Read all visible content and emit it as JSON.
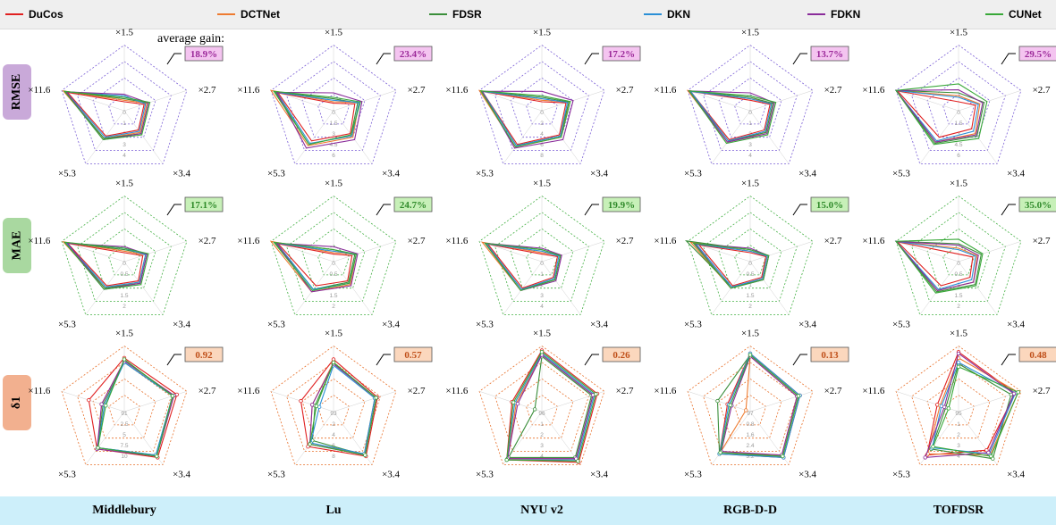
{
  "legend": [
    {
      "name": "DuCos",
      "color": "#e02020"
    },
    {
      "name": "DCTNet",
      "color": "#ee7b30"
    },
    {
      "name": "FDSR",
      "color": "#3a8e3a"
    },
    {
      "name": "DKN",
      "color": "#2a8fd6"
    },
    {
      "name": "FDKN",
      "color": "#8a2c9a"
    },
    {
      "name": "CUNet",
      "color": "#38a838"
    }
  ],
  "average_gain_label": "average gain:",
  "row_labels": [
    "RMSE",
    "MAE",
    "δ1"
  ],
  "row_colors": {
    "RMSE": "#c9a9d9",
    "MAE": "#a9d8a0",
    "δ1": "#f2b08f"
  },
  "datasets": [
    "Middlebury",
    "Lu",
    "NYU v2",
    "RGB-D-D",
    "TOFDSR"
  ],
  "colors": {
    "bottom_bar": "#cdeffa",
    "legend_bar": "#efefef"
  },
  "chart_data": {
    "type": "radar",
    "axes": [
      "×1.5",
      "×2.7",
      "×3.4",
      "×5.3",
      "×11.6"
    ],
    "rows": [
      {
        "metric": "RMSE",
        "ring_color": "#7b5fd6",
        "gain_bg": "#f4c4f0",
        "gain_text": "#9c2a9a",
        "panels": [
          {
            "dataset": "Middlebury",
            "gain": "18.9%",
            "ring_labels": [
              "0",
              "1",
              "2",
              "3",
              "4"
            ],
            "series": {
              "DuCos": [
                0.6,
                1.4,
                1.6,
                2.1,
                4.0
              ],
              "DCTNet": [
                0.7,
                1.6,
                1.8,
                2.3,
                4.3
              ],
              "FDSR": [
                0.8,
                1.7,
                1.9,
                2.3,
                4.2
              ],
              "DKN": [
                1.0,
                1.5,
                1.7,
                2.2,
                4.1
              ],
              "FDKN": [
                1.1,
                1.7,
                1.9,
                2.4,
                4.1
              ],
              "CUNet": [
                0.9,
                1.8,
                2.0,
                2.4,
                4.2
              ]
            }
          },
          {
            "dataset": "Lu",
            "gain": "23.4%",
            "ring_labels": [
              "0",
              "1.5",
              "3",
              "4.5",
              "6"
            ],
            "series": {
              "DuCos": [
                0.5,
                1.5,
                1.9,
                2.5,
                3.9
              ],
              "DCTNet": [
                0.6,
                1.8,
                2.2,
                2.9,
                4.4
              ],
              "FDSR": [
                0.8,
                1.7,
                2.0,
                2.8,
                4.1
              ],
              "DKN": [
                0.7,
                1.8,
                2.1,
                2.7,
                4.0
              ],
              "FDKN": [
                1.2,
                2.0,
                2.4,
                3.1,
                4.0
              ],
              "CUNet": [
                0.9,
                1.9,
                2.0,
                2.8,
                4.2
              ]
            }
          },
          {
            "dataset": "NYU v2",
            "gain": "17.2%",
            "ring_labels": [
              "0",
              "2",
              "4",
              "6",
              "8"
            ],
            "series": {
              "DuCos": [
                0.6,
                1.7,
                2.0,
                2.8,
                4.2
              ],
              "DCTNet": [
                0.7,
                1.9,
                2.2,
                3.0,
                4.4
              ],
              "FDSR": [
                0.9,
                1.9,
                2.1,
                2.9,
                4.2
              ],
              "DKN": [
                0.8,
                1.8,
                2.1,
                2.9,
                4.2
              ],
              "FDKN": [
                1.3,
                2.2,
                2.4,
                3.1,
                4.2
              ],
              "CUNet": [
                1.0,
                2.0,
                2.2,
                3.0,
                4.3
              ]
            }
          },
          {
            "dataset": "RGB-D-D",
            "gain": "13.7%",
            "ring_labels": [
              "0",
              "1",
              "2",
              "3",
              "4"
            ],
            "series": {
              "DuCos": [
                0.7,
                1.4,
                1.6,
                2.4,
                4.2
              ],
              "DCTNet": [
                0.8,
                1.6,
                1.8,
                2.6,
                4.4
              ],
              "FDSR": [
                0.9,
                1.6,
                1.8,
                2.5,
                4.3
              ],
              "DKN": [
                0.8,
                1.5,
                1.7,
                2.5,
                4.2
              ],
              "FDKN": [
                1.2,
                1.7,
                1.9,
                2.6,
                4.3
              ],
              "CUNet": [
                1.0,
                1.8,
                2.0,
                2.7,
                4.3
              ]
            }
          },
          {
            "dataset": "TOFDSR",
            "gain": "29.5%",
            "ring_labels": [
              "0",
              "1.5",
              "3",
              "4.5",
              "6"
            ],
            "series": {
              "DuCos": [
                0.6,
                1.2,
                1.5,
                2.2,
                4.3
              ],
              "DCTNet": [
                1.0,
                1.5,
                1.9,
                2.6,
                4.4
              ],
              "FDSR": [
                1.2,
                1.8,
                2.1,
                2.7,
                4.4
              ],
              "DKN": [
                0.9,
                1.4,
                1.7,
                2.5,
                4.4
              ],
              "FDKN": [
                1.4,
                1.7,
                2.0,
                2.6,
                4.4
              ],
              "CUNet": [
                1.8,
                2.0,
                2.3,
                2.8,
                4.4
              ]
            }
          }
        ]
      },
      {
        "metric": "MAE",
        "ring_color": "#43b043",
        "gain_bg": "#c7f0b8",
        "gain_text": "#2f8a2a",
        "panels": [
          {
            "dataset": "Middlebury",
            "gain": "17.1%",
            "ring_labels": [
              "0",
              "0.5",
              "1",
              "1.5",
              "2"
            ],
            "series": {
              "DuCos": [
                0.6,
                1.3,
                1.6,
                2.0,
                4.0
              ],
              "DCTNet": [
                0.7,
                1.5,
                1.7,
                2.2,
                4.3
              ],
              "FDSR": [
                0.8,
                1.6,
                1.8,
                2.2,
                4.1
              ],
              "DKN": [
                0.9,
                1.5,
                1.7,
                2.1,
                4.1
              ],
              "FDKN": [
                1.0,
                1.6,
                1.8,
                2.3,
                4.0
              ],
              "CUNet": [
                0.9,
                1.7,
                1.9,
                2.3,
                4.2
              ]
            }
          },
          {
            "dataset": "Lu",
            "gain": "24.7%",
            "ring_labels": [
              "0",
              "0.5",
              "1",
              "1.5",
              "2"
            ],
            "series": {
              "DuCos": [
                0.5,
                1.3,
                1.6,
                2.0,
                3.9
              ],
              "DCTNet": [
                0.6,
                1.6,
                1.9,
                2.5,
                4.4
              ],
              "FDSR": [
                0.8,
                1.5,
                1.7,
                2.3,
                4.1
              ],
              "DKN": [
                0.7,
                1.6,
                1.8,
                2.3,
                4.0
              ],
              "FDKN": [
                1.0,
                1.7,
                2.0,
                2.5,
                4.0
              ],
              "CUNet": [
                0.8,
                1.6,
                1.8,
                2.4,
                4.2
              ]
            }
          },
          {
            "dataset": "NYU v2",
            "gain": "19.9%",
            "ring_labels": [
              "0",
              "1",
              "2",
              "3",
              "4"
            ],
            "series": {
              "DuCos": [
                0.5,
                1.1,
                1.3,
                2.2,
                3.8
              ],
              "DCTNet": [
                0.6,
                1.3,
                1.5,
                2.4,
                4.2
              ],
              "FDSR": [
                0.8,
                1.3,
                1.5,
                2.3,
                4.0
              ],
              "DKN": [
                0.7,
                1.2,
                1.4,
                2.3,
                3.9
              ],
              "FDKN": [
                0.9,
                1.4,
                1.6,
                2.4,
                4.0
              ],
              "CUNet": [
                0.8,
                1.3,
                1.5,
                2.4,
                4.0
              ]
            }
          },
          {
            "dataset": "RGB-D-D",
            "gain": "15.0%",
            "ring_labels": [
              "0",
              "0.5",
              "1",
              "1.5",
              "2"
            ],
            "series": {
              "DuCos": [
                0.6,
                1.1,
                1.3,
                2.0,
                3.6
              ],
              "DCTNet": [
                0.7,
                1.2,
                1.4,
                2.2,
                4.2
              ],
              "FDSR": [
                0.8,
                1.3,
                1.5,
                2.1,
                4.5
              ],
              "DKN": [
                0.7,
                1.2,
                1.4,
                2.1,
                3.8
              ],
              "FDKN": [
                0.9,
                1.3,
                1.5,
                2.2,
                3.9
              ],
              "CUNet": [
                0.8,
                1.3,
                1.5,
                2.2,
                4.0
              ]
            }
          },
          {
            "dataset": "TOFDSR",
            "gain": "35.0%",
            "ring_labels": [
              "0",
              "0.5",
              "1",
              "1.5",
              "2"
            ],
            "series": {
              "DuCos": [
                0.5,
                1.0,
                1.3,
                2.0,
                4.3
              ],
              "DCTNet": [
                0.9,
                1.3,
                1.7,
                2.4,
                4.4
              ],
              "FDSR": [
                1.2,
                1.6,
                1.9,
                2.5,
                4.4
              ],
              "DKN": [
                0.8,
                1.2,
                1.5,
                2.3,
                4.4
              ],
              "FDKN": [
                1.1,
                1.4,
                1.7,
                2.4,
                4.4
              ],
              "CUNet": [
                1.5,
                1.7,
                2.0,
                2.6,
                4.4
              ]
            }
          }
        ]
      },
      {
        "metric": "δ1",
        "ring_color": "#e8702a",
        "gain_bg": "#fbd7bd",
        "gain_text": "#c0501a",
        "panels": [
          {
            "dataset": "Middlebury",
            "gain": "0.92",
            "ring_labels": [
              "91",
              "2.5",
              "5",
              "7.5",
              "10"
            ],
            "series": {
              "DuCos": [
                3.6,
                3.7,
                3.8,
                3.1,
                2.5
              ],
              "DCTNet": [
                3.4,
                3.5,
                3.7,
                3.0,
                1.6
              ],
              "FDSR": [
                3.3,
                3.4,
                3.6,
                3.0,
                1.5
              ],
              "DKN": [
                3.3,
                3.4,
                3.6,
                3.0,
                1.4
              ],
              "FDKN": [
                3.4,
                3.5,
                3.7,
                3.1,
                1.6
              ],
              "CUNet": [
                3.5,
                3.4,
                3.7,
                3.0,
                1.3
              ]
            }
          },
          {
            "dataset": "Lu",
            "gain": "0.57",
            "ring_labels": [
              "93",
              "2",
              "4",
              "6",
              "8"
            ],
            "series": {
              "DuCos": [
                3.5,
                3.1,
                3.7,
                2.9,
                2.3
              ],
              "DCTNet": [
                3.3,
                2.9,
                3.5,
                2.7,
                1.5
              ],
              "FDSR": [
                3.2,
                3.0,
                3.6,
                2.4,
                1.3
              ],
              "DKN": [
                3.1,
                2.9,
                3.5,
                2.6,
                1.0
              ],
              "FDKN": [
                3.2,
                3.0,
                3.6,
                2.7,
                1.5
              ],
              "CUNet": [
                3.3,
                3.0,
                3.6,
                2.7,
                1.2
              ]
            }
          },
          {
            "dataset": "NYU v2",
            "gain": "0.26",
            "ring_labels": [
              "96",
              "1",
              "2",
              "3",
              "4"
            ],
            "series": {
              "DuCos": [
                4.1,
                3.9,
                4.2,
                4.0,
                2.1
              ],
              "DCTNet": [
                3.8,
                3.6,
                3.9,
                3.9,
                1.8
              ],
              "FDSR": [
                3.7,
                3.5,
                3.8,
                3.8,
                0.5
              ],
              "DKN": [
                3.9,
                3.7,
                4.0,
                4.0,
                1.9
              ],
              "FDKN": [
                3.8,
                3.6,
                3.9,
                3.9,
                1.7
              ],
              "CUNet": [
                4.0,
                3.8,
                4.1,
                4.0,
                2.0
              ]
            }
          },
          {
            "dataset": "RGB-D-D",
            "gain": "0.13",
            "ring_labels": [
              "97",
              "0.8",
              "1.6",
              "2.4",
              "3.2"
            ],
            "series": {
              "DuCos": [
                3.9,
                3.5,
                3.8,
                3.5,
                1.6
              ],
              "DCTNet": [
                3.7,
                3.3,
                3.6,
                3.4,
                0.3
              ],
              "FDSR": [
                3.8,
                3.4,
                3.7,
                3.5,
                2.3
              ],
              "DKN": [
                3.9,
                3.5,
                3.8,
                3.5,
                1.5
              ],
              "FDKN": [
                3.7,
                3.3,
                3.6,
                3.3,
                1.3
              ],
              "CUNet": [
                3.8,
                3.4,
                3.7,
                3.4,
                1.4
              ]
            }
          },
          {
            "dataset": "TOFDSR",
            "gain": "0.48",
            "ring_labels": [
              "95",
              "1",
              "2",
              "3",
              "4"
            ],
            "series": {
              "DuCos": [
                4.0,
                4.0,
                3.2,
                3.6,
                1.5
              ],
              "DCTNet": [
                3.6,
                4.2,
                3.6,
                3.5,
                1.3
              ],
              "FDSR": [
                3.2,
                3.7,
                3.9,
                3.1,
                0.9
              ],
              "DKN": [
                3.3,
                4.0,
                3.5,
                3.0,
                1.2
              ],
              "FDKN": [
                3.9,
                3.9,
                3.4,
                3.8,
                1.0
              ],
              "CUNet": [
                3.0,
                4.2,
                3.7,
                2.9,
                0.7
              ]
            }
          }
        ]
      }
    ]
  }
}
